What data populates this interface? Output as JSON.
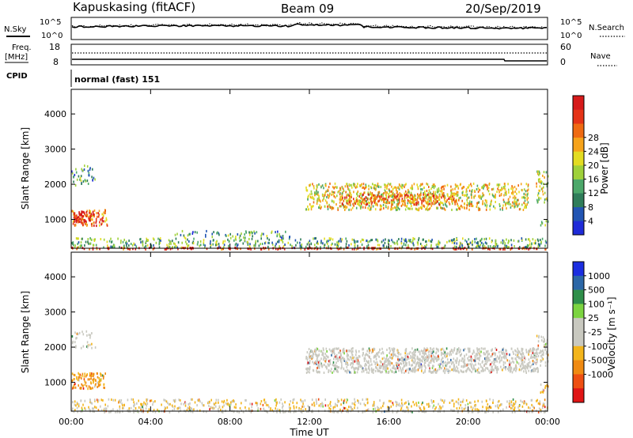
{
  "header": {
    "station": "Kapuskasing (fitACF)",
    "beam": "Beam 09",
    "date": "20/Sep/2019"
  },
  "top_panels": {
    "nsky_label": "N.Sky",
    "nsearch_label": "N.Search",
    "log_ticks": [
      "10^5",
      "10^0"
    ],
    "freq_label": "Freq.",
    "freq_unit": "[MHz]",
    "freq_ticks": [
      "18",
      "8"
    ],
    "nave_label": "Nave",
    "nave_ticks": [
      "60",
      "0"
    ],
    "cpid_label": "CPID",
    "cpid_value": "normal (fast) 151"
  },
  "chart_data": [
    {
      "type": "heatmap",
      "name": "power",
      "ylabel": "Slant Range [km]",
      "xlabel": "",
      "ylim": [
        180,
        4700
      ],
      "yticks": [
        1000,
        2000,
        3000,
        4000
      ],
      "xlim": [
        0,
        24
      ],
      "colorbar": {
        "label": "Power [dB]",
        "ticks": [
          "4",
          "8",
          "12",
          "16",
          "20",
          "24",
          "28"
        ],
        "colors": [
          "#1f2bd8",
          "#2255b3",
          "#2f7d5a",
          "#4ca86a",
          "#9fd13a",
          "#e3dc22",
          "#f6a31b",
          "#ef6a12",
          "#e53317",
          "#d61a1a"
        ]
      },
      "regions": [
        {
          "t0": 0.0,
          "t1": 24.0,
          "r0": 180,
          "r1": 230,
          "intensity": 0.9,
          "density": 0.95
        },
        {
          "t0": 0.0,
          "t1": 24.0,
          "r0": 230,
          "r1": 500,
          "intensity": 0.35,
          "density": 0.45
        },
        {
          "t0": 5.0,
          "t1": 11.0,
          "r0": 500,
          "r1": 700,
          "intensity": 0.3,
          "density": 0.3
        },
        {
          "t0": 0.0,
          "t1": 1.8,
          "r0": 850,
          "r1": 1300,
          "intensity": 0.75,
          "density": 0.75
        },
        {
          "t0": 0.1,
          "t1": 1.1,
          "r0": 950,
          "r1": 1250,
          "intensity": 0.97,
          "density": 0.9
        },
        {
          "t0": 0.0,
          "t1": 1.2,
          "r0": 2000,
          "r1": 2600,
          "intensity": 0.3,
          "density": 0.3
        },
        {
          "t0": 11.8,
          "t1": 23.0,
          "r0": 1300,
          "r1": 2050,
          "intensity": 0.55,
          "density": 0.6
        },
        {
          "t0": 13.5,
          "t1": 19.5,
          "r0": 1450,
          "r1": 1750,
          "intensity": 0.75,
          "density": 0.7
        },
        {
          "t0": 23.4,
          "t1": 24.0,
          "r0": 1500,
          "r1": 2400,
          "intensity": 0.5,
          "density": 0.5
        },
        {
          "t0": 23.6,
          "t1": 24.0,
          "r0": 800,
          "r1": 1000,
          "intensity": 0.5,
          "density": 0.5
        }
      ]
    },
    {
      "type": "heatmap",
      "name": "velocity",
      "ylabel": "Slant Range [km]",
      "xlabel": "Time UT",
      "ylim": [
        180,
        4700
      ],
      "yticks": [
        1000,
        2000,
        3000,
        4000
      ],
      "xlim": [
        0,
        24
      ],
      "xticks": [
        "00:00",
        "04:00",
        "08:00",
        "12:00",
        "16:00",
        "20:00",
        "00:00"
      ],
      "colorbar": {
        "label": "Velocity [m s⁻¹]",
        "ticks": [
          "1000",
          "500",
          "100",
          "25",
          "-25",
          "-100",
          "-500",
          "-1000"
        ],
        "colors": [
          "#1c2ee0",
          "#2c67a7",
          "#2f8f4a",
          "#7cd440",
          "#c9c9c0",
          "#c9c9c0",
          "#f3b51c",
          "#f08a12",
          "#ee4f12",
          "#e01515"
        ]
      },
      "regions": [
        {
          "t0": 0.0,
          "t1": 24.0,
          "r0": 180,
          "r1": 230,
          "v": 0.5,
          "density": 0.9
        },
        {
          "t0": 0.0,
          "t1": 24.0,
          "r0": 230,
          "r1": 550,
          "v": 0.4,
          "density": 0.4
        },
        {
          "t0": 0.0,
          "t1": 1.7,
          "r0": 850,
          "r1": 1300,
          "v": 0.3,
          "density": 0.75
        },
        {
          "t0": 0.0,
          "t1": 1.2,
          "r0": 2000,
          "r1": 2500,
          "v": 0.45,
          "density": 0.3
        },
        {
          "t0": 11.8,
          "t1": 23.5,
          "r0": 1300,
          "r1": 2000,
          "v": 0.47,
          "density": 0.85
        },
        {
          "t0": 23.4,
          "t1": 24.0,
          "r0": 1500,
          "r1": 2400,
          "v": 0.45,
          "density": 0.5
        },
        {
          "t0": 23.6,
          "t1": 24.0,
          "r0": 700,
          "r1": 1000,
          "v": 0.35,
          "density": 0.5
        }
      ]
    }
  ]
}
